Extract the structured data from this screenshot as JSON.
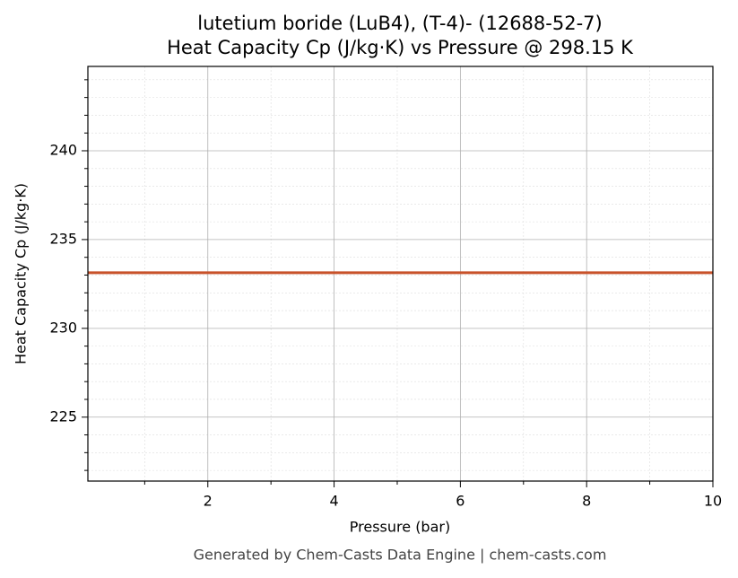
{
  "chart_data": {
    "type": "line",
    "title": "lutetium boride (LuB4), (T-4)- (12688-52-7)",
    "subtitle": "Heat Capacity Cp (J/kg·K) vs Pressure @ 298.15 K",
    "x_label": "Pressure (bar)",
    "y_label": "Heat Capacity Cp (J/kg·K)",
    "footer": "Generated by Chem-Casts Data Engine | chem-casts.com",
    "x": [
      0.1,
      10
    ],
    "series": [
      {
        "name": "Heat Capacity Cp",
        "color": "#c8522a",
        "values": [
          233.13,
          233.13
        ]
      }
    ],
    "xlim": [
      0.1,
      10
    ],
    "ylim": [
      221.4,
      244.75
    ],
    "xticks": [
      2,
      4,
      6,
      8,
      10
    ],
    "yticks": [
      225,
      230,
      235,
      240
    ],
    "xminorticks": [
      1,
      3,
      5,
      7,
      9
    ],
    "yminorticks": [
      222,
      223,
      224,
      226,
      227,
      228,
      229,
      231,
      232,
      233,
      234,
      236,
      237,
      238,
      239,
      241,
      242,
      243,
      244
    ],
    "grid": true
  }
}
